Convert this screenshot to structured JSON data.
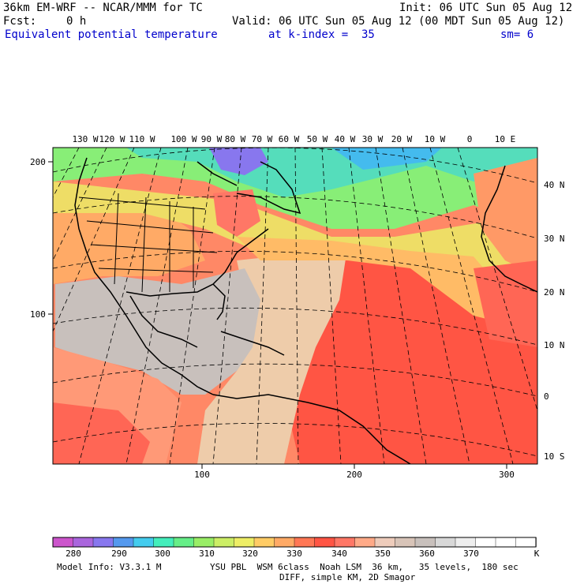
{
  "header": {
    "model_line": "36km EM-WRF -- NCAR/MMM for TC",
    "init": "Init: 06 UTC Sun 05 Aug 12",
    "fcst_label": "Fcst:",
    "fcst_value": "0 h",
    "valid": "Valid: 06 UTC Sun 05 Aug 12 (00 MDT Sun 05 Aug 12)",
    "field_name": "Equivalent potential temperature",
    "level_label": "at k-index =  35",
    "smooth_label": "sm= 6"
  },
  "map": {
    "top_lon_labels": [
      "130 W",
      "120 W",
      "110 W",
      "100 W",
      "90 W",
      "80 W",
      "70 W",
      "60 W",
      "50 W",
      "40 W",
      "30 W",
      "20 W",
      "10 W",
      "0",
      "10 E"
    ],
    "right_lat_labels": [
      "40 N",
      "30 N",
      "20 N",
      "10 N",
      "0",
      "10 S"
    ],
    "left_grid_labels": [
      "200",
      "100"
    ],
    "bottom_grid_labels": [
      "100",
      "200",
      "300"
    ]
  },
  "colorbar": {
    "labels": [
      "280",
      "290",
      "300",
      "310",
      "320",
      "330",
      "340",
      "350",
      "360",
      "370"
    ],
    "unit": "K",
    "colors": [
      "#cc55cc",
      "#aa66dd",
      "#8877ee",
      "#5599ee",
      "#44ccee",
      "#44eebb",
      "#66ee88",
      "#99ee66",
      "#ccee66",
      "#eeee66",
      "#ffcc66",
      "#ffaa66",
      "#ff7755",
      "#ff5544",
      "#ff7766",
      "#ffaa88",
      "#eeccbb",
      "#d8c4b8",
      "#c8c0bc",
      "#d8d8d8",
      "#eeeeee",
      "#ffffff",
      "#ffffff",
      "#ffffff"
    ]
  },
  "footer": {
    "model_info": "Model Info: V3.3.1 M",
    "physics": "YSU PBL  WSM 6class  Noah LSM  36 km,   35 levels,  180 sec",
    "diff": "DIFF, simple KM, 2D Smagor"
  }
}
